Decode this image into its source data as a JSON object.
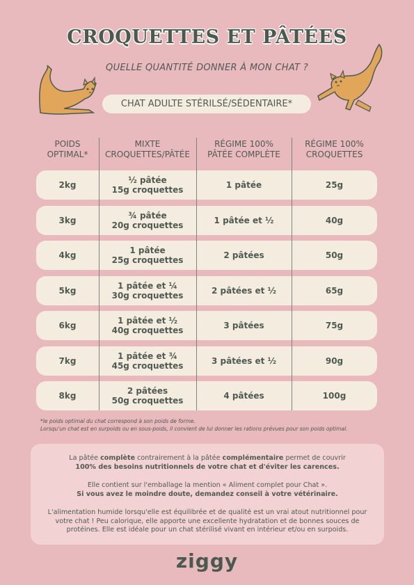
{
  "title": "CROQUETTES ET PÂTÉES",
  "subtitle": "QUELLE QUANTITÉ DONNER À MON CHAT ?",
  "category_label": "CHAT ADULTE STÉRILSÉ/SÉDENTAIRE*",
  "table": {
    "headers": [
      [
        "POIDS",
        "OPTIMAL*"
      ],
      [
        "MIXTE",
        "CROQUETTES/PÂTÉE"
      ],
      [
        "RÉGIME 100%",
        "PÂTÉE COMPLÈTE"
      ],
      [
        "RÉGIME 100%",
        "CROQUETTES"
      ]
    ],
    "rows": [
      {
        "weight": "2kg",
        "mixed": [
          "½ pâtée",
          "15g croquettes"
        ],
        "pate": "1 pâtée",
        "croquettes": "25g"
      },
      {
        "weight": "3kg",
        "mixed": [
          "¾ pâtée",
          "20g croquettes"
        ],
        "pate": "1 pâtée et ½",
        "croquettes": "40g"
      },
      {
        "weight": "4kg",
        "mixed": [
          "1 pâtée",
          "25g croquettes"
        ],
        "pate": "2 pâtées",
        "croquettes": "50g"
      },
      {
        "weight": "5kg",
        "mixed": [
          "1 pâtée et ¼",
          "30g croquettes"
        ],
        "pate": "2 pâtées et ½",
        "croquettes": "65g"
      },
      {
        "weight": "6kg",
        "mixed": [
          "1 pâtée et ½",
          "40g croquettes"
        ],
        "pate": "3 pâtées",
        "croquettes": "75g"
      },
      {
        "weight": "7kg",
        "mixed": [
          "1 pâtée et ¾",
          "45g croquettes"
        ],
        "pate": "3 pâtées et ½",
        "croquettes": "90g"
      },
      {
        "weight": "8kg",
        "mixed": [
          "2 pâtées",
          "50g croquettes"
        ],
        "pate": "4 pâtées",
        "croquettes": "100g"
      }
    ]
  },
  "footnote": {
    "line1": "*le poids optimal du chat correspond à son poids de forme.",
    "line2": "Lorsqu'un chat est en surpoids ou en sous-poids, il convient de lui donner les rations prévues pour son poids optimal."
  },
  "info": {
    "p1_a": "La pâtée ",
    "p1_b": "complète",
    "p1_c": " contrairement à la pâtée ",
    "p1_d": "complémentaire",
    "p1_e": " permet de couvrir",
    "p1_f": "100% des besoins nutritionnels de votre chat et d'éviter les carences.",
    "p2_a": "Elle contient sur l'emballage la mention « Aliment complet pour Chat ».",
    "p2_b": "Si vous avez le moindre doute, demandez conseil à votre vétérinaire.",
    "p3": "L'alimentation humide lorsqu'elle est équilibrée et de qualité est un vrai atout nutritionnel pour votre chat ! Peu calorique, elle apporte une excellente hydratation et de bonnes souces de protéines. Elle est idéale pour un chat stérilisé vivant en intérieur et/ou en surpoids."
  },
  "logo": "ziggy",
  "colors": {
    "background": "#e8b9bd",
    "row_fill": "#f5ece0",
    "info_fill": "#f2d2d2",
    "text": "#4f5a52",
    "cat": "#e2a65a"
  }
}
